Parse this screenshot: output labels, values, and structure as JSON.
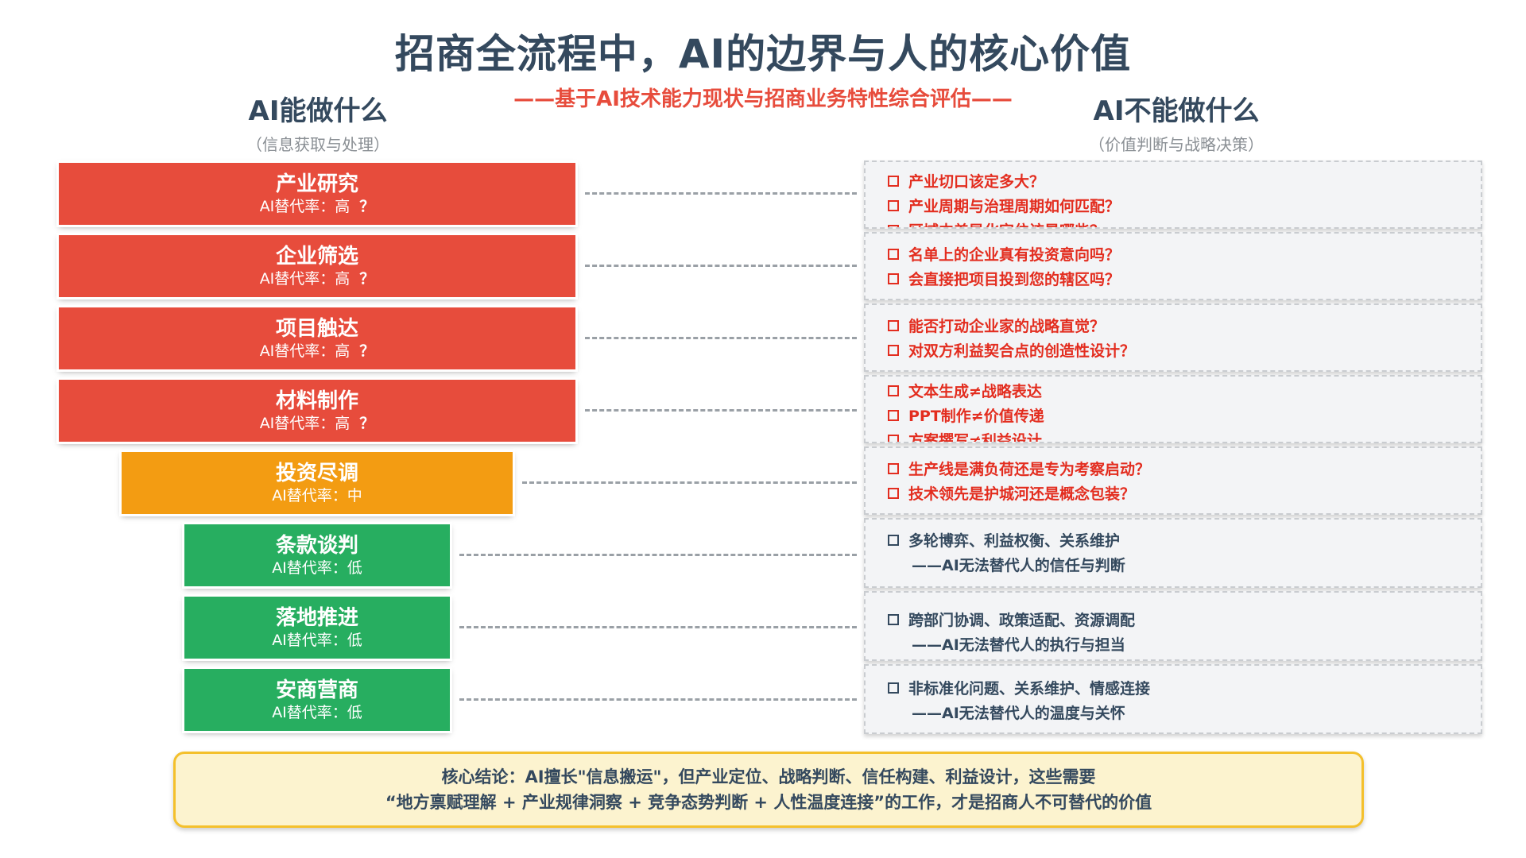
{
  "header": {
    "title": "招商全流程中，AI的边界与人的核心价值",
    "subtitle": "——基于AI技术能力现状与招商业务特性综合评估——"
  },
  "left_column": {
    "heading": "AI能做什么",
    "caption": "（信息获取与处理）"
  },
  "right_column": {
    "heading": "AI不能做什么",
    "caption": "（价值判断与战略决策）"
  },
  "colors": {
    "high": "#e74c3c",
    "medium": "#f39c12",
    "low": "#27ae60",
    "question_red": "#e32d1f",
    "question_dark": "#34495e",
    "conclusion_bg": "#fcf3cf",
    "conclusion_border": "#f4c02c"
  },
  "stages": [
    {
      "name": "产业研究",
      "rate": "AI替代率：高",
      "mark": "？",
      "level": "high"
    },
    {
      "name": "企业筛选",
      "rate": "AI替代率：高",
      "mark": "？",
      "level": "high"
    },
    {
      "name": "项目触达",
      "rate": "AI替代率：高",
      "mark": "？",
      "level": "high"
    },
    {
      "name": "材料制作",
      "rate": "AI替代率：高",
      "mark": "？",
      "level": "high"
    },
    {
      "name": "投资尽调",
      "rate": "AI替代率：中",
      "mark": "",
      "level": "medium"
    },
    {
      "name": "条款谈判",
      "rate": "AI替代率：低",
      "mark": "",
      "level": "low"
    },
    {
      "name": "落地推进",
      "rate": "AI替代率：低",
      "mark": "",
      "level": "low"
    },
    {
      "name": "安商营商",
      "rate": "AI替代率：低",
      "mark": "",
      "level": "low"
    }
  ],
  "questions": [
    {
      "style": "red",
      "lines": [
        {
          "text": "产业切口该定多大？",
          "bullet": true
        },
        {
          "text": "产业周期与治理周期如何匹配？",
          "bullet": true
        },
        {
          "text": "区域中差异化定位该是哪些？",
          "bullet": true
        }
      ]
    },
    {
      "style": "red",
      "lines": [
        {
          "text": "名单上的企业真有投资意向吗？",
          "bullet": true
        },
        {
          "text": "会直接把项目投到您的辖区吗？",
          "bullet": true
        }
      ]
    },
    {
      "style": "red",
      "lines": [
        {
          "text": "能否打动企业家的战略直觉？",
          "bullet": true
        },
        {
          "text": "对双方利益契合点的创造性设计？",
          "bullet": true
        }
      ]
    },
    {
      "style": "red",
      "lines": [
        {
          "text": "文本生成≠战略表达",
          "bullet": true
        },
        {
          "text": "PPT制作≠价值传递",
          "bullet": true
        },
        {
          "text": "方案撰写≠利益设计",
          "bullet": true
        }
      ]
    },
    {
      "style": "red",
      "lines": [
        {
          "text": "生产线是满负荷还是专为考察启动？",
          "bullet": true
        },
        {
          "text": "技术领先是护城河还是概念包装？",
          "bullet": true
        }
      ]
    },
    {
      "style": "dark",
      "lines": [
        {
          "text": "多轮博弈、利益权衡、关系维护",
          "bullet": true
        },
        {
          "text": "——AI无法替代人的信任与判断",
          "bullet": false
        }
      ]
    },
    {
      "style": "dark",
      "lines": [
        {
          "text": "跨部门协调、政策适配、资源调配",
          "bullet": true
        },
        {
          "text": "——AI无法替代人的执行与担当",
          "bullet": false
        }
      ]
    },
    {
      "style": "dark",
      "lines": [
        {
          "text": "非标准化问题、关系维护、情感连接",
          "bullet": true
        },
        {
          "text": "——AI无法替代人的温度与关怀",
          "bullet": false
        }
      ]
    }
  ],
  "conclusion": {
    "line1": "核心结论：AI擅长\"信息搬运\"，但产业定位、战略判断、信任构建、利益设计，这些需要",
    "line2": "“地方禀赋理解 + 产业规律洞察 + 竞争态势判断 + 人性温度连接”的工作，才是招商人不可替代的价值"
  }
}
